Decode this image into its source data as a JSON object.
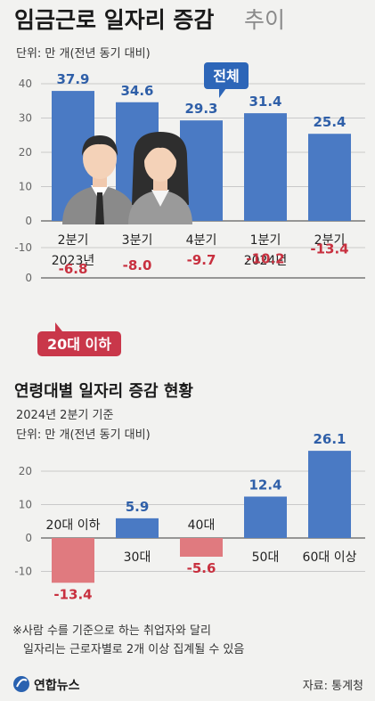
{
  "header": {
    "title_main": "임금근로 일자리 증감",
    "title_suffix": "추이",
    "unit": "단위: 만 개(전년 동기 대비)"
  },
  "colors": {
    "blue": "#4a7ac4",
    "red": "#e07a7f",
    "blue_text": "#2f5fa8",
    "red_text": "#c8303f",
    "badge_blue": "#2d66b8",
    "badge_red": "#c9374a"
  },
  "chart_data": [
    {
      "type": "bar",
      "title": "임금근로 일자리 증감 추이",
      "categories": [
        "2분기",
        "3분기",
        "4분기",
        "1분기",
        "2분기"
      ],
      "category_years": [
        "2023년",
        "",
        "",
        "2024년",
        ""
      ],
      "series": [
        {
          "name": "전체",
          "values": [
            37.9,
            34.6,
            29.3,
            31.4,
            25.4
          ]
        },
        {
          "name": "20대 이하",
          "values": [
            -6.8,
            -8.0,
            -9.7,
            -10.2,
            -13.4
          ]
        }
      ],
      "value_labels": {
        "total": [
          "37.9",
          "34.6",
          "29.3",
          "31.4",
          "25.4"
        ],
        "youth": [
          "-6.8",
          "-8.0",
          "-9.7",
          "-10.2",
          "-13.4"
        ]
      },
      "ylim_total": [
        0,
        40
      ],
      "yticks_total": [
        "0",
        "10",
        "20",
        "30",
        "40"
      ],
      "ylim_youth": [
        -15,
        0
      ],
      "yticks_youth": [
        "0",
        "-10"
      ],
      "grid": true
    },
    {
      "type": "bar",
      "title": "연령대별 일자리 증감 현황",
      "subtitle": "2024년 2분기 기준",
      "unit": "단위: 만 개(전년 동기 대비)",
      "categories": [
        "20대 이하",
        "30대",
        "40대",
        "50대",
        "60대 이상"
      ],
      "values": [
        -13.4,
        5.9,
        -5.6,
        12.4,
        26.1
      ],
      "value_labels": [
        "-13.4",
        "5.9",
        "-5.6",
        "12.4",
        "26.1"
      ],
      "ylim": [
        -15,
        30
      ],
      "yticks": [
        "20",
        "10",
        "0",
        "-10"
      ],
      "grid": true
    }
  ],
  "footer": {
    "note_line1": "※사람 수를 기준으로 하는 취업자와 달리",
    "note_line2": "일자리는 근로자별로 2개 이상 집계될 수 있음",
    "logo_text": "연합뉴스",
    "source": "자료: 통계청"
  }
}
